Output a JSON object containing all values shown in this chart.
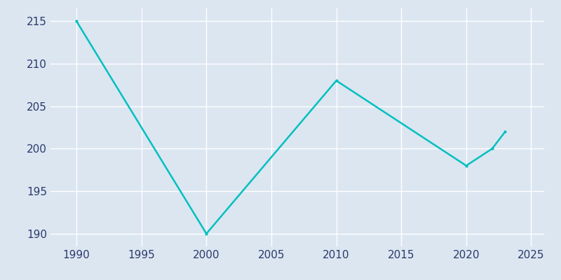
{
  "years": [
    1990,
    2000,
    2010,
    2020,
    2022,
    2023
  ],
  "population": [
    215,
    190,
    208,
    198,
    200,
    202
  ],
  "line_color": "#00C0C0",
  "plot_background_color": "#dce6f1",
  "figure_background": "#dce6f1",
  "grid_color": "#ffffff",
  "tick_label_color": "#2b3a6b",
  "xlim": [
    1988,
    2026
  ],
  "ylim": [
    188.5,
    216.5
  ],
  "xticks": [
    1990,
    1995,
    2000,
    2005,
    2010,
    2015,
    2020,
    2025
  ],
  "yticks": [
    190,
    195,
    200,
    205,
    210,
    215
  ],
  "line_width": 1.8,
  "marker": ".",
  "marker_size": 4,
  "tick_labelsize": 11
}
